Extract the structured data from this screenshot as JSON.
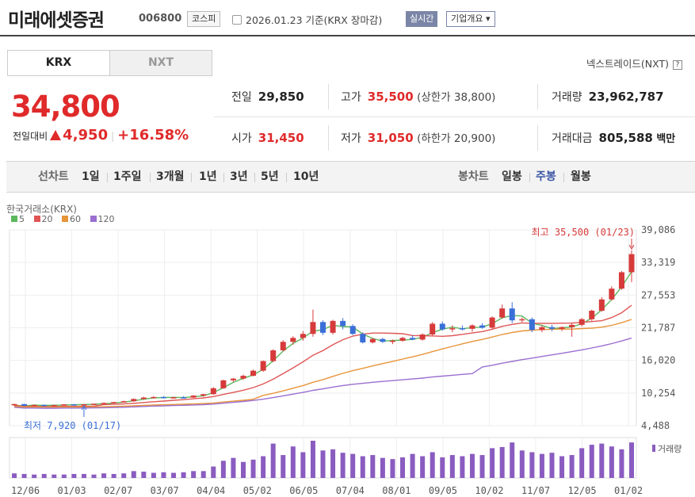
{
  "header": {
    "name": "미래에셋증권",
    "code": "006800",
    "market": "코스피",
    "date_text": "2026.01.23 기준(KRX 장마감)",
    "realtime_label": "실시간",
    "corp_label": "기업개요 ▾"
  },
  "tabs": [
    {
      "label": "KRX"
    },
    {
      "label": "NXT"
    }
  ],
  "nxt_link": "넥스트레이드(NXT)",
  "price": {
    "current": "34,800",
    "change_label": "전일대비",
    "change": "4,950",
    "change_pct": "+16.58%"
  },
  "stats": {
    "prev_label": "전일",
    "prev": "29,850",
    "high_label": "고가",
    "high": "35,500",
    "upper_limit": "(상한가 38,800)",
    "volume_label": "거래량",
    "volume": "23,962,787",
    "open_label": "시가",
    "open": "31,450",
    "low_label": "저가",
    "low": "31,050",
    "lower_limit": "(하한가 20,900)",
    "amount_label": "거래대금",
    "amount": "805,588",
    "amount_unit": "백만"
  },
  "period_bar": {
    "line_label": "선차트",
    "line_periods": [
      "1일",
      "1주일",
      "3개월",
      "1년",
      "3년",
      "5년",
      "10년"
    ],
    "candle_label": "봉차트",
    "candle_periods": [
      "일봉",
      "주봉",
      "월봉"
    ],
    "selected_candle": "주봉"
  },
  "chart_data": {
    "type": "candlestick",
    "exchange_label": "한국거래소(KRX)",
    "ma_legend": [
      {
        "label": "5",
        "color": "#5cb85c"
      },
      {
        "label": "20",
        "color": "#e05555"
      },
      {
        "label": "60",
        "color": "#e8953a"
      },
      {
        "label": "120",
        "color": "#9a6fd0"
      }
    ],
    "y_ticks": [
      "39,086",
      "33,319",
      "27,553",
      "21,787",
      "16,020",
      "10,254",
      "4,488"
    ],
    "y_range": [
      4488,
      39086
    ],
    "x_ticks": [
      "12/06",
      "01/03",
      "02/07",
      "03/07",
      "04/04",
      "05/02",
      "06/05",
      "07/04",
      "08/01",
      "09/05",
      "10/02",
      "11/07",
      "12/05",
      "01/02"
    ],
    "max_annotation": "최고 35,500 (01/23)",
    "min_annotation": "최저 7,920 (01/17)",
    "volume_label": "거래량",
    "up_color": "#d73a3a",
    "down_color": "#3a6fd8",
    "candles": [
      [
        8100,
        8400,
        7950,
        8300
      ],
      [
        8300,
        8350,
        7920,
        8000
      ],
      [
        8000,
        8200,
        7950,
        8150
      ],
      [
        8150,
        8250,
        8000,
        8050
      ],
      [
        8050,
        8200,
        7980,
        8120
      ],
      [
        8120,
        8300,
        8050,
        8250
      ],
      [
        8250,
        8350,
        8100,
        8180
      ],
      [
        8180,
        8300,
        8100,
        8260
      ],
      [
        8260,
        8400,
        8200,
        8350
      ],
      [
        8350,
        8600,
        8250,
        8500
      ],
      [
        8500,
        8700,
        8400,
        8650
      ],
      [
        8650,
        8900,
        8550,
        8800
      ],
      [
        8800,
        9300,
        8700,
        9200
      ],
      [
        9200,
        9600,
        9100,
        9450
      ],
      [
        9450,
        9700,
        9300,
        9550
      ],
      [
        9550,
        9700,
        9300,
        9400
      ],
      [
        9400,
        9600,
        9300,
        9500
      ],
      [
        9500,
        9700,
        9350,
        9450
      ],
      [
        9450,
        9900,
        9400,
        9800
      ],
      [
        9800,
        10100,
        9600,
        10050
      ],
      [
        10050,
        11300,
        9950,
        11100
      ],
      [
        11100,
        12600,
        11000,
        12500
      ],
      [
        12500,
        12900,
        12200,
        12800
      ],
      [
        12800,
        13500,
        12600,
        13300
      ],
      [
        13300,
        14400,
        13200,
        14200
      ],
      [
        14200,
        16000,
        14000,
        15900
      ],
      [
        15900,
        18000,
        15700,
        17800
      ],
      [
        17800,
        19600,
        17600,
        19300
      ],
      [
        19300,
        20300,
        18800,
        20000
      ],
      [
        20000,
        21200,
        19500,
        20700
      ],
      [
        20700,
        25000,
        20200,
        22800
      ],
      [
        22800,
        23100,
        20500,
        20900
      ],
      [
        20900,
        23200,
        20600,
        23000
      ],
      [
        23000,
        23500,
        21500,
        22100
      ],
      [
        22100,
        22400,
        20500,
        20700
      ],
      [
        20700,
        21000,
        19000,
        19200
      ],
      [
        19200,
        20000,
        19000,
        19800
      ],
      [
        19800,
        20000,
        19100,
        19300
      ],
      [
        19300,
        19700,
        18900,
        19500
      ],
      [
        19500,
        20200,
        19300,
        20000
      ],
      [
        20000,
        20500,
        19600,
        19700
      ],
      [
        19700,
        20800,
        19500,
        20600
      ],
      [
        20600,
        22800,
        20400,
        22500
      ],
      [
        22500,
        22900,
        21300,
        21500
      ],
      [
        21500,
        22200,
        21000,
        21700
      ],
      [
        21700,
        22200,
        21300,
        21600
      ],
      [
        21600,
        22400,
        21100,
        22200
      ],
      [
        22200,
        22600,
        21600,
        21800
      ],
      [
        21800,
        23800,
        21600,
        23600
      ],
      [
        23600,
        25900,
        23400,
        25200
      ],
      [
        25200,
        26300,
        22600,
        23100
      ],
      [
        23100,
        23600,
        22800,
        23300
      ],
      [
        23300,
        23600,
        21000,
        21400
      ],
      [
        21400,
        22200,
        21000,
        21900
      ],
      [
        21900,
        22300,
        21200,
        21600
      ],
      [
        21600,
        22000,
        21200,
        21900
      ],
      [
        21900,
        22600,
        20200,
        22300
      ],
      [
        22300,
        23500,
        22000,
        23300
      ],
      [
        23300,
        25000,
        23000,
        24800
      ],
      [
        24800,
        27200,
        24600,
        26800
      ],
      [
        26800,
        29100,
        26600,
        28700
      ],
      [
        28700,
        31800,
        28500,
        31600
      ],
      [
        31600,
        35500,
        29850,
        34800
      ]
    ],
    "volumes": [
      8,
      7,
      6,
      7,
      6,
      6,
      7,
      7,
      6,
      8,
      7,
      8,
      12,
      11,
      9,
      10,
      9,
      10,
      12,
      12,
      20,
      30,
      35,
      28,
      32,
      38,
      60,
      40,
      55,
      45,
      65,
      48,
      50,
      44,
      42,
      38,
      40,
      35,
      33,
      36,
      42,
      38,
      45,
      36,
      40,
      38,
      42,
      40,
      52,
      54,
      62,
      48,
      45,
      42,
      44,
      38,
      40,
      52,
      58,
      60,
      55,
      50,
      62
    ]
  }
}
